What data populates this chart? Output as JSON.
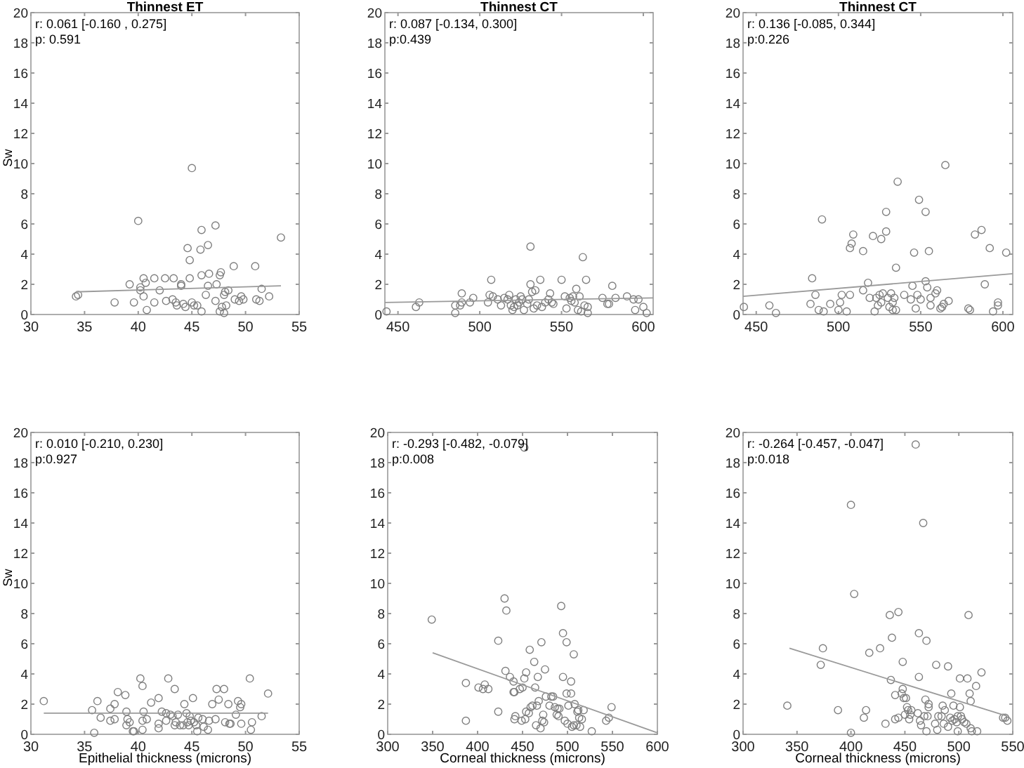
{
  "chart_data": [
    {
      "type": "scatter",
      "title": "Thinnest ET",
      "ylabel": "Sw",
      "annotations": [
        "r: 0.061 [-0.160 , 0.275]",
        "p: 0.591"
      ],
      "xlim": [
        30,
        55
      ],
      "xticks": [
        30,
        35,
        40,
        45,
        50,
        55
      ],
      "ylim": [
        0,
        20
      ],
      "yticks": [
        0,
        2,
        4,
        6,
        8,
        10,
        12,
        14,
        16,
        18,
        20
      ],
      "marker": "circle",
      "grid": false,
      "series": [
        {
          "type": "scatter",
          "color": "#7f7f7f",
          "x": [
            34.2,
            34.4,
            37.8,
            39.2,
            39.6,
            40.0,
            40.2,
            40.2,
            40.5,
            40.5,
            40.7,
            40.8,
            41.5,
            41.5,
            42.0,
            42.5,
            42.6,
            43.2,
            43.3,
            43.5,
            43.6,
            44.0,
            44.0,
            44.2,
            44.4,
            44.6,
            44.8,
            44.8,
            45.0,
            45.0,
            45.2,
            45.5,
            45.8,
            45.9,
            45.9,
            45.9,
            46.3,
            46.5,
            46.5,
            46.6,
            47.2,
            47.3,
            47.2,
            47.6,
            47.7,
            47.6,
            47.8,
            48.0,
            48.1,
            48.2,
            48.4,
            48.0,
            48.9,
            49.0,
            49.4,
            49.6,
            49.8,
            50.9,
            51.0,
            51.3,
            51.5,
            52.2,
            53.3
          ],
          "values": [
            1.2,
            1.3,
            0.8,
            2.0,
            0.8,
            6.2,
            1.6,
            1.8,
            2.4,
            1.2,
            2.1,
            0.3,
            2.4,
            0.8,
            1.6,
            2.4,
            0.9,
            1.0,
            2.4,
            0.8,
            0.6,
            2.0,
            1.9,
            0.7,
            0.5,
            4.4,
            3.6,
            2.4,
            9.7,
            0.8,
            0.6,
            0.6,
            4.3,
            5.6,
            2.6,
            0.2,
            1.3,
            1.9,
            4.6,
            2.7,
            5.9,
            2.0,
            0.9,
            2.6,
            2.8,
            0.2,
            0.5,
            1.3,
            1.5,
            0.6,
            1.6,
            0.1,
            3.2,
            1.0,
            0.9,
            1.2,
            1.0,
            3.2,
            1.0,
            0.9,
            1.7,
            1.2,
            5.1
          ]
        },
        {
          "type": "line",
          "color": "#9a9a9a",
          "marker": "none",
          "x": [
            34.2,
            53.3
          ],
          "values": [
            1.5,
            1.9
          ]
        }
      ]
    },
    {
      "type": "scatter",
      "title": "Thinnest CT",
      "annotations": [
        "r: 0.087 [-0.134, 0.300]",
        "p:0.439"
      ],
      "xlim": [
        442,
        606
      ],
      "xticks": [
        450,
        500,
        550,
        600
      ],
      "ylim": [
        0,
        20
      ],
      "yticks": [
        0,
        2,
        4,
        6,
        8,
        10,
        12,
        14,
        16,
        18,
        20
      ],
      "marker": "circle",
      "grid": false,
      "series": [
        {
          "type": "scatter",
          "color": "#7f7f7f",
          "x": [
            443,
            461,
            463,
            485,
            485,
            488,
            489,
            489,
            494,
            496,
            505,
            506,
            507,
            508,
            511,
            513,
            515,
            517,
            518,
            519,
            520,
            521,
            522,
            523,
            524,
            525,
            526,
            527,
            529,
            530,
            531,
            531,
            532,
            533,
            534,
            535,
            537,
            538,
            540,
            542,
            543,
            544,
            545,
            550,
            552,
            553,
            555,
            556,
            557,
            558,
            559,
            560,
            561,
            562,
            563,
            564,
            565,
            566,
            566,
            575,
            578,
            579,
            581,
            583,
            590,
            594,
            595,
            597,
            600,
            602
          ],
          "values": [
            0.2,
            0.5,
            0.8,
            0.1,
            0.6,
            0.6,
            1.4,
            0.8,
            0.8,
            1.1,
            0.8,
            1.3,
            2.3,
            1.2,
            1.0,
            0.6,
            1.1,
            1.0,
            1.3,
            0.6,
            0.3,
            0.5,
            1.0,
            0.6,
            0.8,
            1.2,
            1.0,
            0.3,
            0.7,
            1.0,
            4.5,
            2.0,
            1.5,
            0.4,
            1.6,
            0.6,
            2.3,
            0.5,
            0.8,
            1.0,
            1.4,
            0.8,
            0.7,
            2.3,
            1.2,
            0.4,
            1.1,
            0.9,
            1.2,
            0.8,
            1.7,
            0.3,
            1.2,
            0.2,
            3.8,
            0.6,
            2.3,
            0.5,
            0.1,
            1.1,
            0.7,
            0.7,
            1.9,
            1.1,
            1.2,
            1.0,
            0.3,
            1.0,
            0.5,
            0.1
          ]
        },
        {
          "type": "line",
          "color": "#9a9a9a",
          "marker": "none",
          "x": [
            442,
            606
          ],
          "values": [
            0.8,
            1.1
          ]
        }
      ]
    },
    {
      "type": "scatter",
      "title": "Thinnest CT",
      "annotations": [
        "r: 0.136 [-0.085, 0.344]",
        "p:0.226"
      ],
      "xlim": [
        442,
        606
      ],
      "xticks": [
        450,
        500,
        550,
        600
      ],
      "ylim": [
        0,
        20
      ],
      "yticks": [
        0,
        2,
        4,
        6,
        8,
        10,
        12,
        14,
        16,
        18,
        20
      ],
      "marker": "circle",
      "grid": false,
      "series": [
        {
          "type": "scatter",
          "color": "#7f7f7f",
          "x": [
            442.5,
            458,
            462,
            483,
            484,
            486,
            488,
            490,
            491,
            495,
            500,
            501,
            502,
            505,
            507,
            507,
            508,
            509,
            515,
            515,
            518,
            519,
            521,
            522,
            523,
            524,
            525,
            526,
            526,
            527,
            529,
            529,
            530,
            531,
            532,
            533,
            533,
            534,
            535,
            535,
            536,
            540,
            544,
            545,
            546,
            547,
            548,
            549,
            550,
            553,
            553,
            554,
            555,
            556,
            556,
            559,
            560,
            562,
            563,
            564,
            565,
            567,
            579,
            580,
            583,
            587,
            589,
            592,
            594,
            597,
            597,
            602
          ],
          "values": [
            0.5,
            0.6,
            0.1,
            0.7,
            2.4,
            1.3,
            0.3,
            6.3,
            0.2,
            0.7,
            0.3,
            0.8,
            1.3,
            0.2,
            1.3,
            4.4,
            4.7,
            5.3,
            4.2,
            1.6,
            2.1,
            1.1,
            5.2,
            0.2,
            1.1,
            0.6,
            1.3,
            0.8,
            5.0,
            1.4,
            6.8,
            5.5,
            1.1,
            0.5,
            1.4,
            0.3,
            0.8,
            1.1,
            3.1,
            0.3,
            8.8,
            1.3,
            1.0,
            1.9,
            4.1,
            0.4,
            1.3,
            7.6,
            1.0,
            6.8,
            2.2,
            1.8,
            4.2,
            1.1,
            0.6,
            1.4,
            1.6,
            0.4,
            0.5,
            0.7,
            9.9,
            0.9,
            0.4,
            0.3,
            5.3,
            5.6,
            2.0,
            4.4,
            0.2,
            0.6,
            0.8,
            4.1
          ]
        },
        {
          "type": "line",
          "color": "#9a9a9a",
          "marker": "none",
          "x": [
            442,
            606
          ],
          "values": [
            1.2,
            2.7
          ]
        }
      ]
    },
    {
      "type": "scatter",
      "xlabel": "Epithelial thickness (microns)",
      "ylabel": "Sw",
      "annotations": [
        "r: 0.010 [-0.210, 0.230]",
        "p:0.927"
      ],
      "xlim": [
        30,
        55
      ],
      "xticks": [
        30,
        35,
        40,
        45,
        50,
        55
      ],
      "ylim": [
        0,
        20
      ],
      "yticks": [
        0,
        2,
        4,
        6,
        8,
        10,
        12,
        14,
        16,
        18,
        20
      ],
      "marker": "circle",
      "grid": false,
      "series": [
        {
          "type": "scatter",
          "color": "#7f7f7f",
          "x": [
            31.2,
            35.7,
            35.9,
            36.2,
            36.5,
            37.4,
            37.4,
            37.8,
            37.8,
            38.1,
            38.8,
            38.9,
            38.9,
            39.0,
            39.2,
            39.5,
            39.6,
            40.2,
            40.4,
            40.5,
            40.4,
            40.4,
            40.8,
            41.2,
            41.9,
            41.9,
            41.9,
            42.2,
            42.6,
            42.6,
            42.8,
            43.0,
            43.2,
            43.4,
            43.4,
            43.5,
            43.7,
            43.9,
            44.2,
            44.3,
            44.5,
            44.6,
            44.7,
            44.8,
            44.9,
            45.1,
            45.2,
            45.4,
            45.5,
            45.6,
            46.0,
            46.1,
            46.5,
            46.6,
            46.9,
            47.2,
            47.3,
            47.5,
            48.0,
            48.1,
            48.4,
            48.5,
            48.6,
            49.1,
            49.3,
            49.5,
            49.6,
            49.6,
            50.4,
            50.6,
            50.5,
            51.5,
            52.1
          ],
          "values": [
            2.2,
            1.6,
            0.1,
            2.2,
            1.1,
            1.7,
            0.9,
            1.0,
            2.0,
            2.8,
            2.6,
            1.5,
            0.6,
            1.0,
            0.8,
            0.2,
            0.2,
            3.7,
            3.2,
            1.5,
            0.9,
            0.3,
            1.0,
            2.1,
            2.4,
            0.7,
            0.4,
            1.5,
            1.4,
            0.9,
            3.7,
            1.3,
            1.2,
            0.6,
            3.0,
            0.8,
            1.3,
            0.6,
            0.6,
            2.0,
            1.4,
            0.8,
            0.6,
            1.2,
            0.9,
            2.4,
            0.8,
            0.6,
            0.2,
            1.1,
            1.0,
            0.5,
            0.3,
            0.9,
            2.0,
            1.0,
            3.0,
            2.3,
            3.0,
            0.8,
            2.0,
            0.7,
            0.7,
            1.3,
            2.2,
            1.8,
            2.0,
            0.7,
            3.7,
            0.8,
            0.3,
            1.2,
            2.7
          ]
        },
        {
          "type": "line",
          "color": "#9a9a9a",
          "marker": "none",
          "x": [
            31.2,
            52.1
          ],
          "values": [
            1.4,
            1.4
          ]
        }
      ]
    },
    {
      "type": "scatter",
      "xlabel": "Corneal thickness (microns)",
      "annotations": [
        "r: -0.293 [-0.482, -0.079]",
        "p:0.008"
      ],
      "xlim": [
        300,
        600
      ],
      "xticks": [
        300,
        350,
        400,
        450,
        500,
        550,
        600
      ],
      "ylim": [
        0,
        20
      ],
      "yticks": [
        0,
        2,
        4,
        6,
        8,
        10,
        12,
        14,
        16,
        18,
        20
      ],
      "marker": "circle",
      "grid": false,
      "series": [
        {
          "type": "scatter",
          "color": "#7f7f7f",
          "x": [
            349,
            387,
            387,
            401,
            406,
            408,
            412,
            423,
            423,
            430,
            431,
            432,
            436,
            440,
            440,
            441,
            441,
            442,
            447,
            449,
            450,
            452,
            452,
            453,
            454,
            454,
            457,
            458,
            459,
            461,
            463,
            464,
            465,
            466,
            467,
            468,
            470,
            471,
            472,
            473,
            474,
            475,
            476,
            480,
            482,
            484,
            486,
            488,
            489,
            490,
            491,
            493,
            495,
            495,
            497,
            499,
            499,
            500,
            501,
            504,
            504,
            505,
            507,
            507,
            508,
            510,
            511,
            512,
            513,
            514,
            516,
            518,
            527,
            543,
            546,
            549
          ],
          "values": [
            7.6,
            3.4,
            0.9,
            3.1,
            3.0,
            3.3,
            3.0,
            6.2,
            1.5,
            9.0,
            4.2,
            8.2,
            3.8,
            3.5,
            2.8,
            2.8,
            1.0,
            1.2,
            3.0,
            0.9,
            3.1,
            19.0,
            3.7,
            1.0,
            4.1,
            1.5,
            1.4,
            5.6,
            1.8,
            1.9,
            4.8,
            3.1,
            0.6,
            1.9,
            3.8,
            2.2,
            0.4,
            6.1,
            0.9,
            1.3,
            0.8,
            4.3,
            2.5,
            1.9,
            2.5,
            2.5,
            1.8,
            1.3,
            1.7,
            1.2,
            1.7,
            8.5,
            6.7,
            3.8,
            0.9,
            6.1,
            2.7,
            0.7,
            1.9,
            3.5,
            2.7,
            0.5,
            5.3,
            0.6,
            2.0,
            0.6,
            1.5,
            1.6,
            1.1,
            0.5,
            1.0,
            1.6,
            0.2,
            0.9,
            1.1,
            1.8
          ]
        },
        {
          "type": "line",
          "color": "#9a9a9a",
          "marker": "none",
          "x": [
            350,
            600
          ],
          "values": [
            5.4,
            0.1
          ]
        }
      ]
    },
    {
      "type": "scatter",
      "xlabel": "Corneal thickness (microns)",
      "annotations": [
        "r: -0.264 [-0.457, -0.047]",
        "p:0.018"
      ],
      "xlim": [
        300,
        550
      ],
      "xticks": [
        300,
        350,
        400,
        450,
        500,
        550
      ],
      "ylim": [
        0,
        20
      ],
      "yticks": [
        0,
        2,
        4,
        6,
        8,
        10,
        12,
        14,
        16,
        18,
        20
      ],
      "marker": "circle",
      "grid": false,
      "series": [
        {
          "type": "scatter",
          "color": "#7f7f7f",
          "x": [
            341,
            372,
            374,
            388,
            400,
            400,
            403,
            412,
            414,
            417,
            427,
            432,
            436,
            437,
            438,
            441,
            441,
            444,
            444,
            447,
            448,
            448,
            449,
            450,
            451,
            452,
            453,
            454,
            455,
            456,
            460,
            462,
            463,
            463,
            464,
            465,
            467,
            468,
            469,
            470,
            470,
            471,
            472,
            472,
            478,
            479,
            480,
            481,
            484,
            485,
            486,
            487,
            490,
            490,
            492,
            493,
            494,
            495,
            496,
            498,
            499,
            499,
            501,
            501,
            502,
            503,
            505,
            507,
            508,
            509,
            510,
            511,
            511,
            512,
            516,
            517,
            521,
            541,
            543,
            545
          ],
          "values": [
            1.9,
            4.6,
            5.7,
            1.6,
            0.1,
            15.2,
            9.3,
            1.1,
            1.6,
            5.4,
            5.7,
            0.7,
            7.9,
            3.6,
            6.4,
            1.0,
            2.6,
            8.1,
            1.1,
            2.7,
            4.8,
            3.0,
            2.4,
            1.3,
            2.4,
            1.8,
            1.6,
            1.0,
            1.3,
            1.6,
            19.2,
            1.4,
            6.7,
            3.8,
            0.9,
            0.6,
            14.0,
            1.2,
            2.3,
            6.2,
            0.2,
            1.2,
            2.0,
            1.8,
            0.7,
            4.6,
            0.3,
            1.2,
            1.2,
            1.9,
            0.7,
            1.6,
            0.5,
            4.5,
            1.1,
            2.7,
            0.9,
            1.9,
            1.0,
            0.8,
            0.2,
            1.2,
            3.7,
            1.8,
            1.2,
            1.0,
            0.8,
            0.7,
            3.7,
            7.9,
            2.7,
            2.2,
            0.4,
            0.2,
            3.2,
            0.2,
            4.1,
            1.1,
            1.1,
            0.9
          ]
        },
        {
          "type": "line",
          "color": "#9a9a9a",
          "marker": "none",
          "x": [
            343,
            545
          ],
          "values": [
            5.7,
            1.2
          ]
        }
      ]
    }
  ]
}
